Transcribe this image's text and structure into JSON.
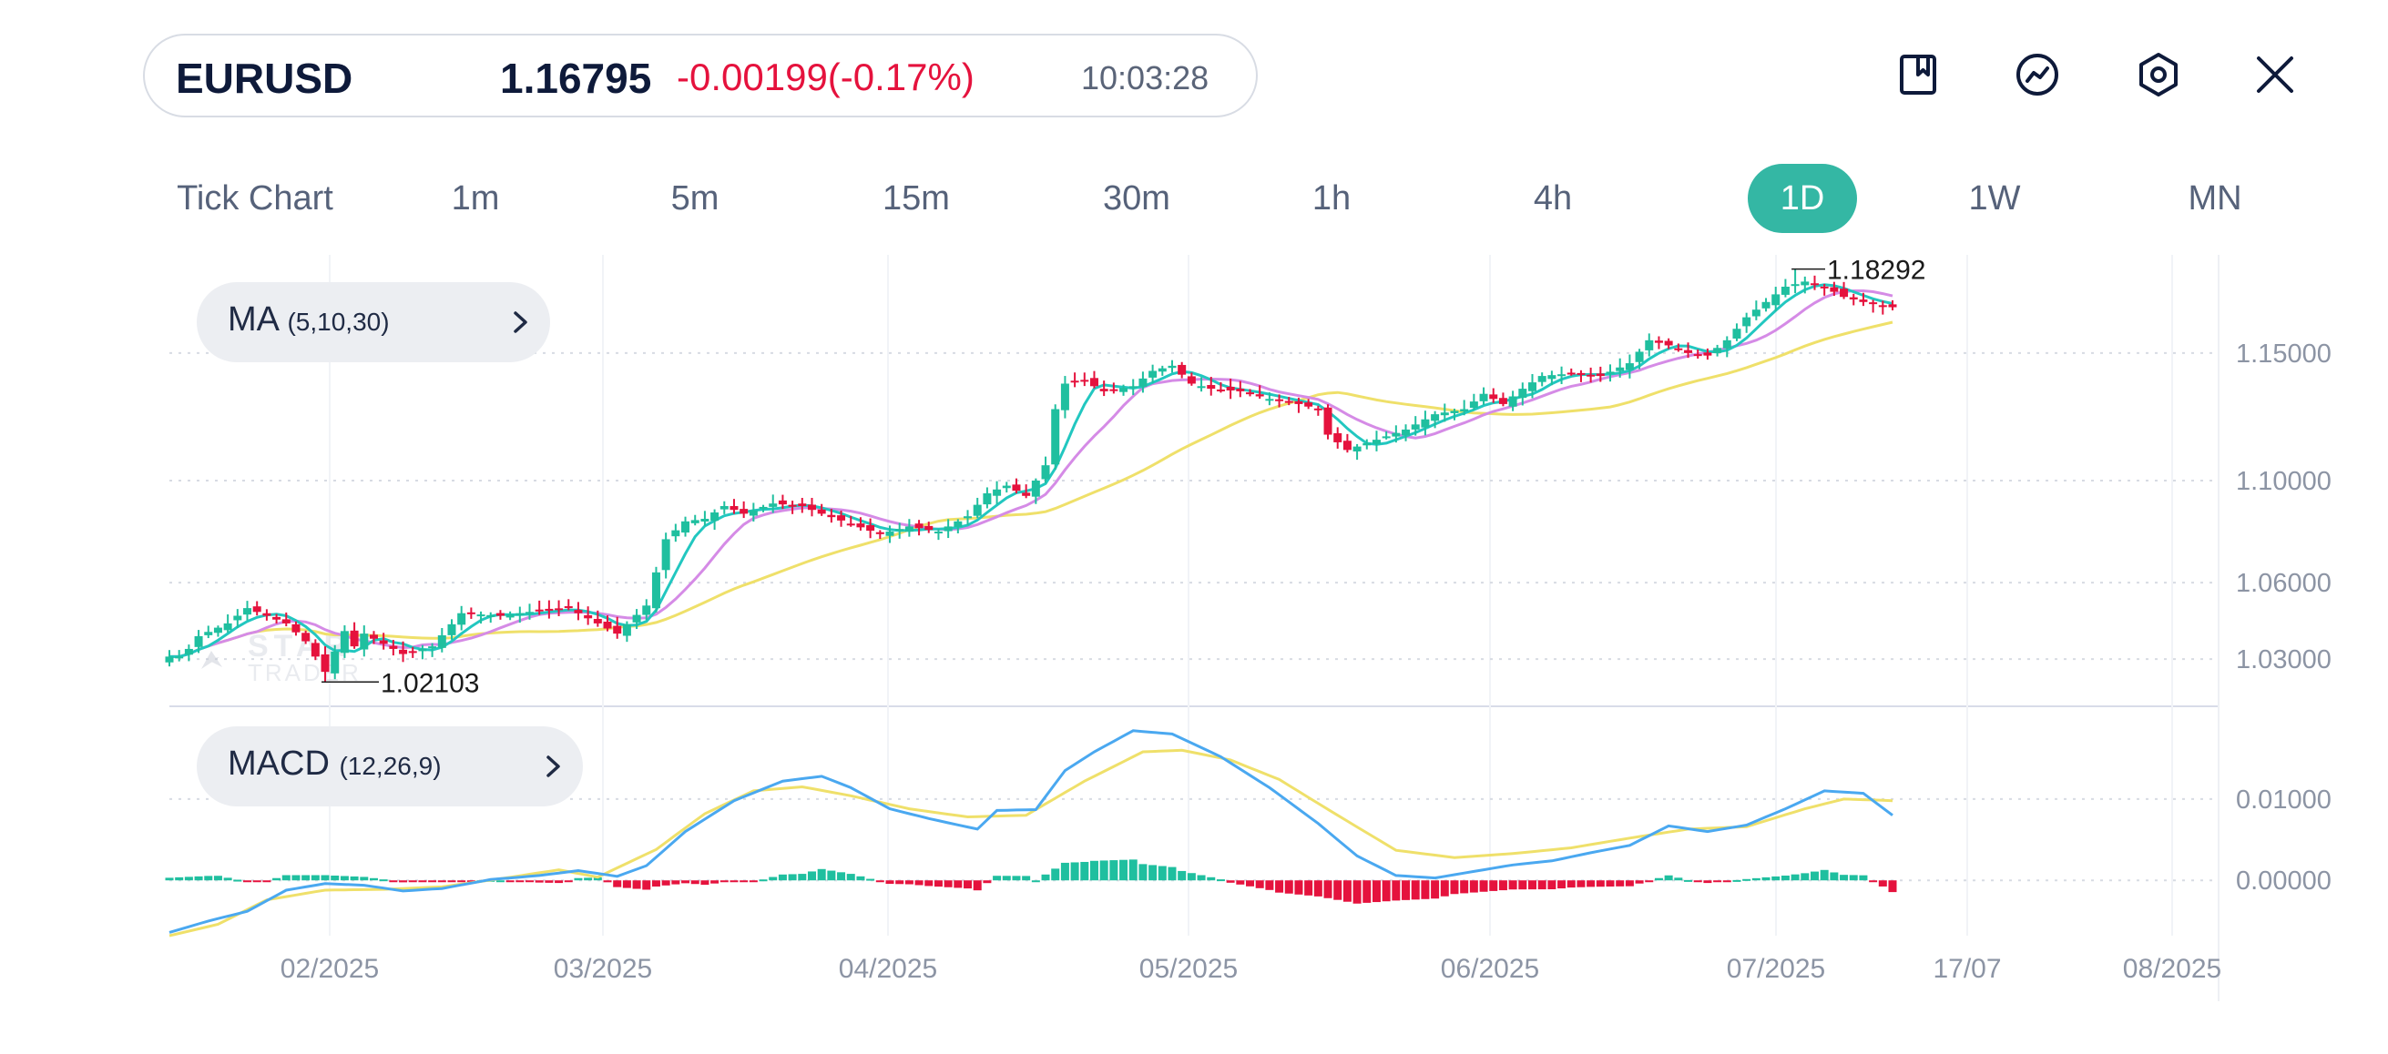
{
  "header": {
    "symbol": "EURUSD",
    "price": "1.16795",
    "change": "-0.00199(-0.17%)",
    "time": "10:03:28"
  },
  "toolbar": {
    "icons": [
      "bookmark-icon",
      "indicator-icon",
      "settings-icon",
      "close-icon"
    ]
  },
  "timeframes": [
    "Tick Chart",
    "1m",
    "5m",
    "15m",
    "30m",
    "1h",
    "4h",
    "1D",
    "1W",
    "MN"
  ],
  "active_timeframe": "1D",
  "indicators": {
    "ma": {
      "name": "MA",
      "params": "(5,10,30)"
    },
    "macd": {
      "name": "MACD",
      "params": "(12,26,9)"
    }
  },
  "watermark": {
    "line1": "STAR",
    "line2": "TRADER"
  },
  "colors": {
    "up": "#1fbf9f",
    "down": "#e5123d",
    "ma5": "#22c7c0",
    "ma10": "#d58be6",
    "ma30": "#efe06a",
    "macd_line": "#4aa8f0",
    "signal_line": "#efe06a",
    "accent": "#34b7a4"
  },
  "chart_data": {
    "type": "candlestick",
    "x_ticks": [
      "02/2025",
      "03/2025",
      "04/2025",
      "05/2025",
      "06/2025",
      "07/2025",
      "17/07",
      "08/2025"
    ],
    "price_axis": {
      "ticks": [
        "1.15000",
        "1.10000",
        "1.06000",
        "1.03000"
      ],
      "ylim": [
        1.0115,
        1.1892
      ]
    },
    "annotations": {
      "high": "1.18292",
      "low": "1.02103"
    },
    "macd_axis": {
      "ticks": [
        "0.01000",
        "0.00000"
      ],
      "ylim": [
        -0.0068,
        0.0214
      ]
    },
    "price_anchors": [
      [
        1,
        1.031
      ],
      [
        2,
        1.034
      ],
      [
        3,
        1.039
      ],
      [
        6,
        1.044
      ],
      [
        8,
        1.05
      ],
      [
        10,
        1.047
      ],
      [
        12,
        1.044
      ],
      [
        14,
        1.037
      ],
      [
        16,
        1.025
      ],
      [
        18,
        1.041
      ],
      [
        19,
        1.035
      ],
      [
        20,
        1.04
      ],
      [
        22,
        1.036
      ],
      [
        24,
        1.032
      ],
      [
        27,
        1.035
      ],
      [
        30,
        1.048
      ],
      [
        34,
        1.047
      ],
      [
        38,
        1.049
      ],
      [
        41,
        1.05
      ],
      [
        44,
        1.044
      ],
      [
        46,
        1.04
      ],
      [
        49,
        1.051
      ],
      [
        51,
        1.077
      ],
      [
        53,
        1.084
      ],
      [
        55,
        1.085
      ],
      [
        57,
        1.09
      ],
      [
        59,
        1.087
      ],
      [
        62,
        1.091
      ],
      [
        65,
        1.09
      ],
      [
        67,
        1.087
      ],
      [
        70,
        1.083
      ],
      [
        73,
        1.079
      ],
      [
        76,
        1.082
      ],
      [
        79,
        1.08
      ],
      [
        82,
        1.086
      ],
      [
        84,
        1.095
      ],
      [
        86,
        1.098
      ],
      [
        88,
        1.094
      ],
      [
        90,
        1.106
      ],
      [
        91,
        1.128
      ],
      [
        92,
        1.138
      ],
      [
        94,
        1.139
      ],
      [
        96,
        1.135
      ],
      [
        99,
        1.137
      ],
      [
        101,
        1.143
      ],
      [
        103,
        1.145
      ],
      [
        105,
        1.138
      ],
      [
        107,
        1.136
      ],
      [
        110,
        1.135
      ],
      [
        113,
        1.132
      ],
      [
        116,
        1.13
      ],
      [
        118,
        1.128
      ],
      [
        119,
        1.118
      ],
      [
        121,
        1.112
      ],
      [
        124,
        1.116
      ],
      [
        127,
        1.12
      ],
      [
        130,
        1.126
      ],
      [
        133,
        1.128
      ],
      [
        135,
        1.134
      ],
      [
        137,
        1.13
      ],
      [
        139,
        1.136
      ],
      [
        141,
        1.141
      ],
      [
        144,
        1.142
      ],
      [
        147,
        1.141
      ],
      [
        150,
        1.146
      ],
      [
        152,
        1.155
      ],
      [
        154,
        1.153
      ],
      [
        156,
        1.15
      ],
      [
        158,
        1.149
      ],
      [
        160,
        1.155
      ],
      [
        162,
        1.164
      ],
      [
        164,
        1.17
      ],
      [
        166,
        1.176
      ],
      [
        168,
        1.178
      ],
      [
        170,
        1.176
      ],
      [
        172,
        1.172
      ],
      [
        174,
        1.17
      ],
      [
        177,
        1.168
      ]
    ],
    "macd_anchors": [
      [
        0,
        -0.0064
      ],
      [
        4,
        -0.005
      ],
      [
        8,
        -0.0038
      ],
      [
        12,
        -0.0012
      ],
      [
        16,
        -0.0004
      ],
      [
        20,
        -0.0006
      ],
      [
        24,
        -0.0013
      ],
      [
        28,
        -0.001
      ],
      [
        33,
        0.0001
      ],
      [
        38,
        0.0006
      ],
      [
        42,
        0.0012
      ],
      [
        46,
        0.0005
      ],
      [
        49,
        0.0018
      ],
      [
        53,
        0.006
      ],
      [
        58,
        0.0098
      ],
      [
        63,
        0.0122
      ],
      [
        67,
        0.0128
      ],
      [
        70,
        0.0114
      ],
      [
        74,
        0.0088
      ],
      [
        78,
        0.0076
      ],
      [
        83,
        0.0063
      ],
      [
        85,
        0.0086
      ],
      [
        89,
        0.0087
      ],
      [
        92,
        0.0135
      ],
      [
        95,
        0.0158
      ],
      [
        99,
        0.0184
      ],
      [
        103,
        0.018
      ],
      [
        108,
        0.0152
      ],
      [
        113,
        0.0114
      ],
      [
        118,
        0.007
      ],
      [
        122,
        0.003
      ],
      [
        126,
        0.0006
      ],
      [
        130,
        0.0003
      ],
      [
        134,
        0.0011
      ],
      [
        138,
        0.0019
      ],
      [
        142,
        0.0024
      ],
      [
        146,
        0.0034
      ],
      [
        150,
        0.0043
      ],
      [
        154,
        0.0067
      ],
      [
        158,
        0.006
      ],
      [
        162,
        0.0068
      ],
      [
        166,
        0.0088
      ],
      [
        170,
        0.011
      ],
      [
        174,
        0.0107
      ],
      [
        177,
        0.008
      ]
    ],
    "signal_anchors": [
      [
        0,
        -0.0068
      ],
      [
        5,
        -0.0054
      ],
      [
        10,
        -0.0024
      ],
      [
        16,
        -0.0012
      ],
      [
        22,
        -0.0011
      ],
      [
        28,
        -0.0008
      ],
      [
        34,
        0.0002
      ],
      [
        40,
        0.0013
      ],
      [
        44,
        0.0004
      ],
      [
        50,
        0.0038
      ],
      [
        55,
        0.0082
      ],
      [
        60,
        0.011
      ],
      [
        65,
        0.0115
      ],
      [
        70,
        0.0104
      ],
      [
        76,
        0.0088
      ],
      [
        82,
        0.0078
      ],
      [
        88,
        0.008
      ],
      [
        94,
        0.0122
      ],
      [
        100,
        0.0158
      ],
      [
        104,
        0.016
      ],
      [
        109,
        0.0148
      ],
      [
        114,
        0.0124
      ],
      [
        120,
        0.008
      ],
      [
        126,
        0.0037
      ],
      [
        132,
        0.0028
      ],
      [
        138,
        0.0033
      ],
      [
        144,
        0.004
      ],
      [
        150,
        0.0052
      ],
      [
        156,
        0.0063
      ],
      [
        162,
        0.0066
      ],
      [
        168,
        0.0088
      ],
      [
        172,
        0.01
      ],
      [
        177,
        0.0098
      ]
    ]
  }
}
